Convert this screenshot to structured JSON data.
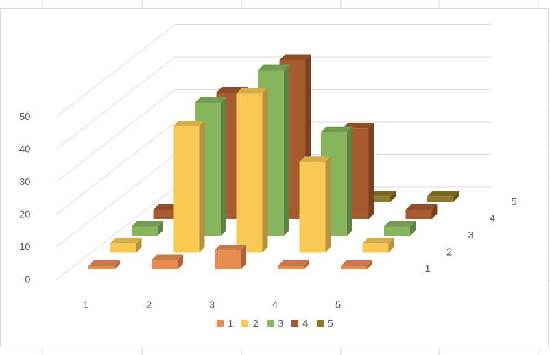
{
  "chart_data": {
    "type": "bar",
    "subtype": "3d-column",
    "categories": [
      "1",
      "2",
      "3",
      "4",
      "5"
    ],
    "series": [
      {
        "name": "1",
        "color": "#E88B51",
        "values": [
          0,
          2,
          5,
          0,
          0
        ]
      },
      {
        "name": "2",
        "color": "#F8C955",
        "values": [
          2,
          38,
          48,
          27,
          2
        ]
      },
      {
        "name": "3",
        "color": "#86B55D",
        "values": [
          2,
          40,
          50,
          31,
          2
        ]
      },
      {
        "name": "4",
        "color": "#A75B2E",
        "values": [
          2,
          38,
          48,
          27,
          2
        ]
      },
      {
        "name": "5",
        "color": "#8C7A26",
        "values": [
          0,
          0,
          0,
          1,
          1
        ]
      }
    ],
    "depth_axis_labels": [
      "1",
      "2",
      "3",
      "4",
      "5"
    ],
    "y_ticks": [
      "0",
      "10",
      "20",
      "30",
      "40",
      "50"
    ],
    "ylim": [
      0,
      60
    ],
    "grid": true,
    "legend_position": "bottom"
  }
}
